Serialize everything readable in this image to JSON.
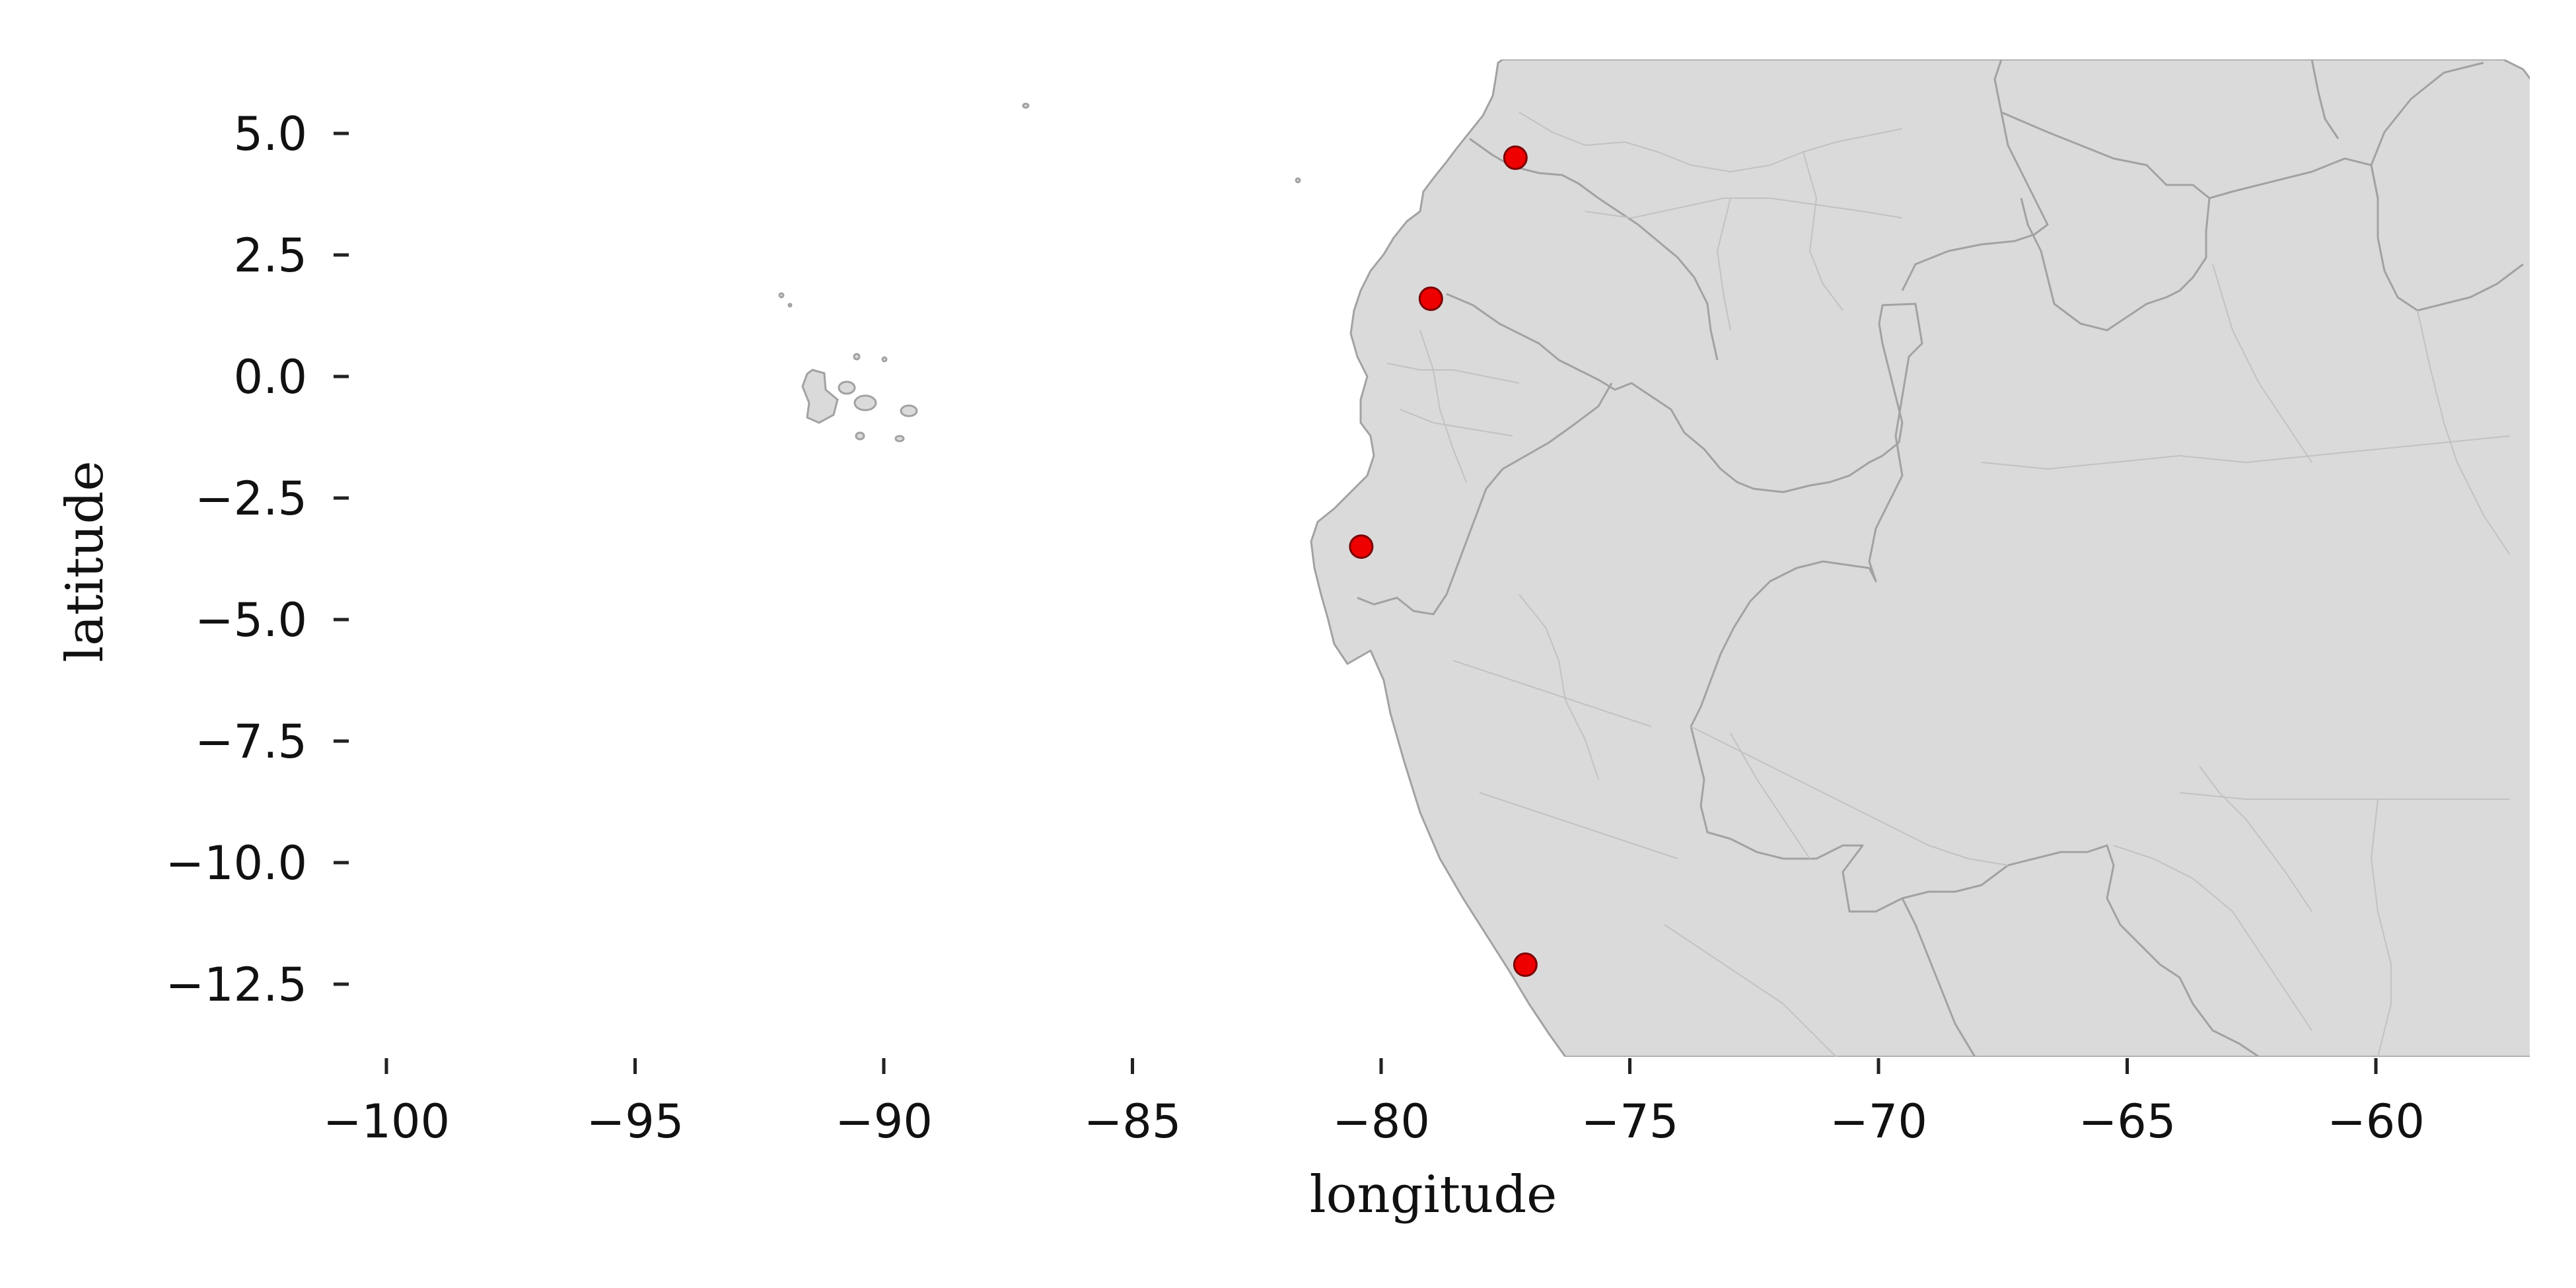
{
  "chart_data": {
    "type": "scatter",
    "title": "",
    "xlabel": "longitude",
    "ylabel": "latitude",
    "xlim": [
      -102,
      -56.9
    ],
    "ylim": [
      -14,
      6.3
    ],
    "xticks": [
      -100,
      -95,
      -90,
      -85,
      -80,
      -75,
      -70,
      -65,
      -60
    ],
    "xtick_labels": [
      "−100",
      "−95",
      "−90",
      "−85",
      "−80",
      "−75",
      "−70",
      "−65",
      "−60"
    ],
    "yticks": [
      5.0,
      2.5,
      0.0,
      -2.5,
      -5.0,
      -7.5,
      -10.0,
      -12.5
    ],
    "ytick_labels": [
      "5.0",
      "2.5",
      "0.0",
      "−2.5",
      "−5.0",
      "−7.5",
      "−10.0",
      "−12.5"
    ],
    "points": [
      {
        "x": -77.3,
        "y": 4.5
      },
      {
        "x": -79.0,
        "y": 1.6
      },
      {
        "x": -80.4,
        "y": -3.5
      },
      {
        "x": -77.1,
        "y": -12.1
      }
    ],
    "grid": false,
    "colors": {
      "point": "#ee0000",
      "land": "#dadada",
      "border": "#a2a2a2"
    }
  }
}
